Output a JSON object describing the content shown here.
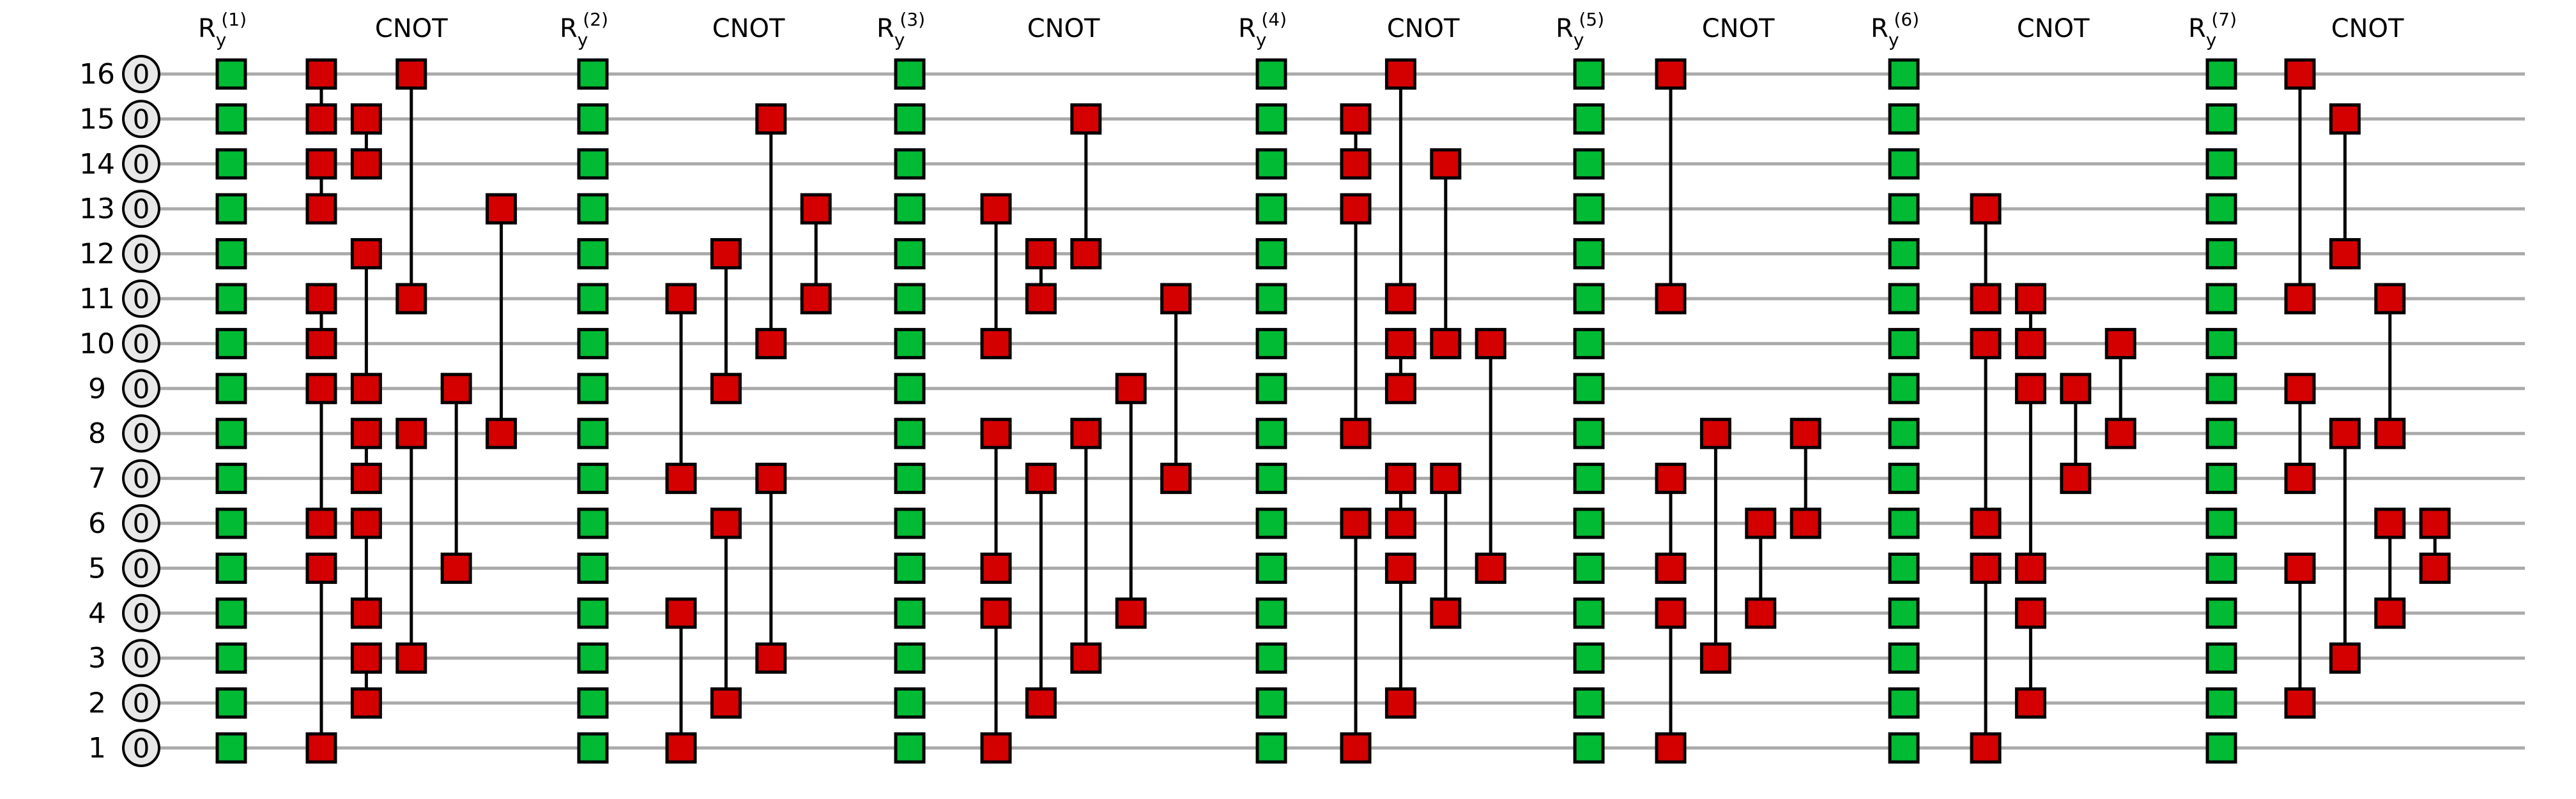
{
  "circuit": {
    "qubit_labels": [
      "1",
      "2",
      "3",
      "4",
      "5",
      "6",
      "7",
      "8",
      "9",
      "10",
      "11",
      "12",
      "13",
      "14",
      "15",
      "16"
    ],
    "initial_state": "0",
    "colors": {
      "rotation": "#00bb33",
      "cnot": "#d40000",
      "wire": "#aaaaaa",
      "init_fill": "#e8e8e8"
    },
    "layers": [
      {
        "ry_label": "R",
        "ry_sub": "y",
        "ry_sup": "(1)",
        "cnot_label": "CNOT",
        "columns": [
          [
            [
              16,
              15
            ],
            [
              14,
              13
            ],
            [
              11,
              10
            ],
            [
              9,
              6
            ],
            [
              5,
              1
            ]
          ],
          [
            [
              15,
              14
            ],
            [
              12,
              9
            ],
            [
              8,
              7
            ],
            [
              6,
              4
            ],
            [
              3,
              2
            ]
          ],
          [
            [
              16,
              11
            ],
            [
              8,
              3
            ]
          ],
          [
            [
              9,
              5
            ]
          ],
          [
            [
              13,
              8
            ]
          ]
        ]
      },
      {
        "ry_label": "R",
        "ry_sub": "y",
        "ry_sup": "(2)",
        "cnot_label": "CNOT",
        "columns": [
          [
            [
              11,
              7
            ],
            [
              4,
              1
            ]
          ],
          [
            [
              12,
              9
            ],
            [
              6,
              2
            ]
          ],
          [
            [
              15,
              10
            ],
            [
              7,
              3
            ]
          ],
          [
            [
              13,
              11
            ]
          ]
        ]
      },
      {
        "ry_label": "R",
        "ry_sub": "y",
        "ry_sup": "(3)",
        "cnot_label": "CNOT",
        "columns": [
          [
            [
              13,
              10
            ],
            [
              8,
              5
            ],
            [
              4,
              1
            ]
          ],
          [
            [
              12,
              11
            ],
            [
              7,
              2
            ]
          ],
          [
            [
              15,
              12
            ],
            [
              8,
              3
            ]
          ],
          [
            [
              9,
              4
            ]
          ],
          [
            [
              11,
              7
            ]
          ]
        ]
      },
      {
        "ry_label": "R",
        "ry_sub": "y",
        "ry_sup": "(4)",
        "cnot_label": "CNOT",
        "columns": [
          [
            [
              15,
              14
            ],
            [
              13,
              8
            ],
            [
              6,
              1
            ]
          ],
          [
            [
              16,
              11
            ],
            [
              10,
              9
            ],
            [
              7,
              6
            ],
            [
              5,
              2
            ]
          ],
          [
            [
              14,
              10
            ],
            [
              7,
              4
            ]
          ],
          [
            [
              10,
              5
            ]
          ]
        ]
      },
      {
        "ry_label": "R",
        "ry_sub": "y",
        "ry_sup": "(5)",
        "cnot_label": "CNOT",
        "columns": [
          [
            [
              16,
              11
            ],
            [
              7,
              5
            ],
            [
              4,
              1
            ]
          ],
          [
            [
              8,
              3
            ]
          ],
          [
            [
              6,
              4
            ]
          ],
          [
            [
              8,
              6
            ]
          ]
        ]
      },
      {
        "ry_label": "R",
        "ry_sub": "y",
        "ry_sup": "(6)",
        "cnot_label": "CNOT",
        "columns": [
          [
            [
              13,
              11
            ],
            [
              10,
              6
            ],
            [
              5,
              1
            ]
          ],
          [
            [
              11,
              10
            ],
            [
              9,
              5
            ],
            [
              4,
              2
            ]
          ],
          [
            [
              9,
              7
            ]
          ],
          [
            [
              10,
              8
            ]
          ]
        ]
      },
      {
        "ry_label": "R",
        "ry_sub": "y",
        "ry_sup": "(7)",
        "cnot_label": "CNOT",
        "columns": [
          [
            [
              16,
              11
            ],
            [
              9,
              7
            ],
            [
              5,
              2
            ]
          ],
          [
            [
              15,
              12
            ],
            [
              8,
              3
            ]
          ],
          [
            [
              11,
              8
            ],
            [
              6,
              4
            ]
          ],
          [
            [
              6,
              5
            ]
          ]
        ]
      }
    ]
  }
}
